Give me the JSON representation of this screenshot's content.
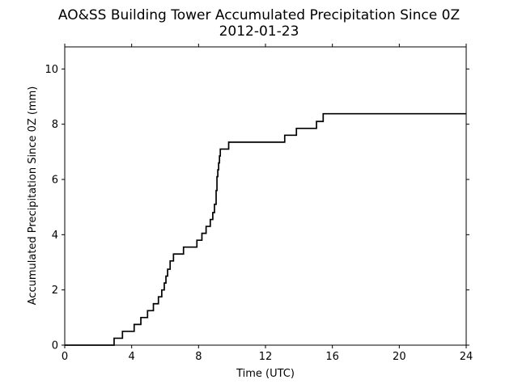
{
  "chart_data": {
    "type": "line",
    "title": "AO&SS Building Tower Accumulated Precipitation Since 0Z",
    "subtitle": "2012-01-23",
    "xlabel": "Time (UTC)",
    "ylabel": "Accumulated Precipitation Since 0Z (mm)",
    "xlim": [
      0,
      24
    ],
    "ylim": [
      0,
      10.8
    ],
    "xticks": [
      0,
      4,
      8,
      12,
      16,
      20,
      24
    ],
    "yticks": [
      0,
      2,
      4,
      6,
      8,
      10
    ],
    "grid": false,
    "series": [
      {
        "color": "#000000",
        "step": true,
        "x": [
          0,
          2.95,
          3.45,
          4.15,
          4.55,
          4.95,
          5.3,
          5.6,
          5.8,
          5.95,
          6.05,
          6.15,
          6.3,
          6.5,
          7.1,
          7.9,
          8.2,
          8.45,
          8.7,
          8.85,
          8.95,
          9.05,
          9.1,
          9.15,
          9.2,
          9.25,
          9.3,
          9.35,
          9.4,
          9.8,
          13.15,
          13.85,
          15.05,
          15.45,
          24
        ],
        "y": [
          0,
          0.25,
          0.5,
          0.75,
          1.0,
          1.25,
          1.5,
          1.75,
          2.0,
          2.25,
          2.5,
          2.75,
          3.05,
          3.3,
          3.55,
          3.8,
          4.05,
          4.3,
          4.55,
          4.8,
          5.1,
          5.6,
          6.1,
          6.35,
          6.6,
          6.85,
          7.1,
          7.1,
          7.1,
          7.35,
          7.6,
          7.85,
          8.1,
          8.38,
          8.38
        ]
      }
    ]
  }
}
